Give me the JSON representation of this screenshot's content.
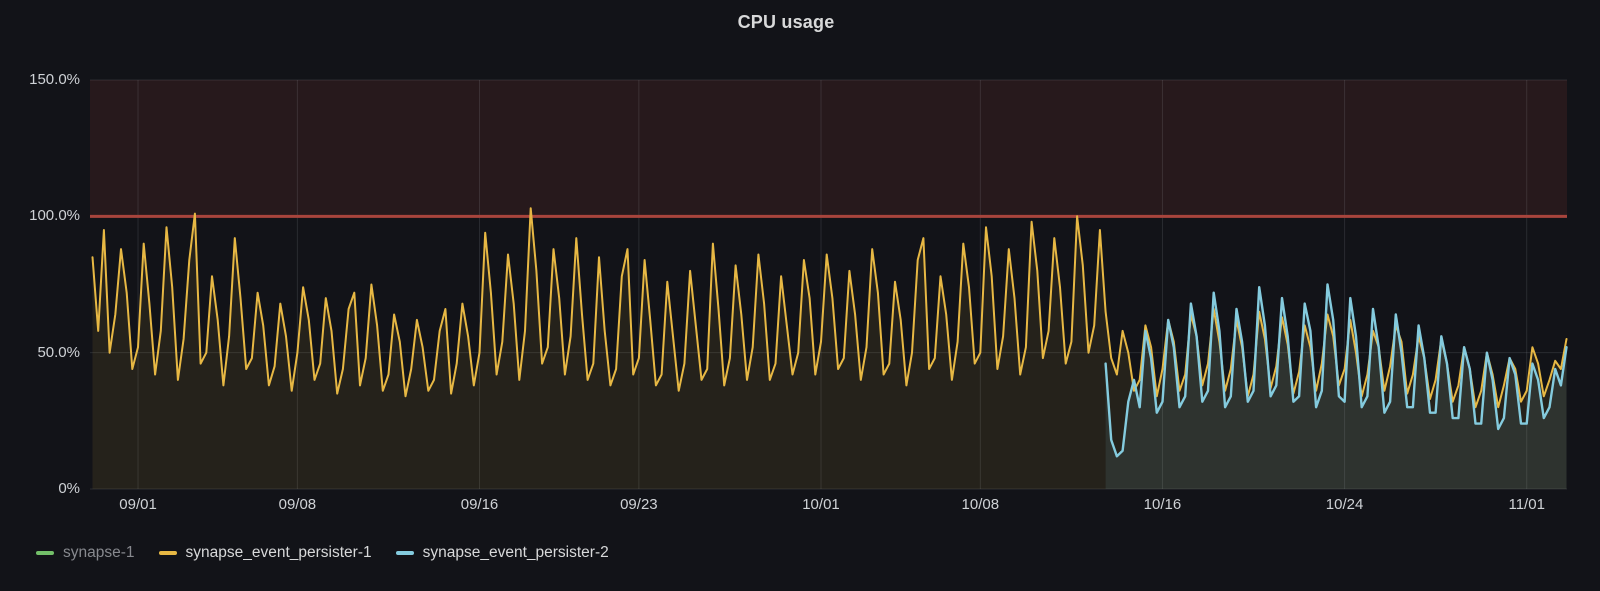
{
  "panel": {
    "title": "CPU usage"
  },
  "colors": {
    "background": "#121318",
    "text": "#CFD2D6",
    "text_dim": "#87898E",
    "grid": "rgba(204,210,220,0.13)",
    "threshold_line": "#A8443C",
    "threshold_region_fill": "rgba(222,80,70,0.10)"
  },
  "legend": {
    "items": [
      {
        "label": "synapse-1",
        "color": "#73BF69",
        "dimmed": true
      },
      {
        "label": "synapse_event_persister-1",
        "color": "#E7B844",
        "dimmed": false
      },
      {
        "label": "synapse_event_persister-2",
        "color": "#84CBDE",
        "dimmed": false
      }
    ]
  },
  "chart_data": {
    "type": "line",
    "title": "CPU usage",
    "xlabel": "",
    "ylabel": "",
    "y_unit": "percent",
    "ylim": [
      0,
      150
    ],
    "grid": true,
    "legend_position": "bottom-left",
    "y_ticks": [
      {
        "value": 0,
        "label": "0%"
      },
      {
        "value": 50,
        "label": "50.0%"
      },
      {
        "value": 100,
        "label": "100.0%"
      },
      {
        "value": 150,
        "label": "150.0%"
      }
    ],
    "x_domain_days_from_sep1": [
      -2.11,
      62.77
    ],
    "x_ticks": [
      {
        "day": 0,
        "label": "09/01"
      },
      {
        "day": 7,
        "label": "09/08"
      },
      {
        "day": 15,
        "label": "09/16"
      },
      {
        "day": 22,
        "label": "09/23"
      },
      {
        "day": 30,
        "label": "10/01"
      },
      {
        "day": 37,
        "label": "10/08"
      },
      {
        "day": 45,
        "label": "10/16"
      },
      {
        "day": 53,
        "label": "10/24"
      },
      {
        "day": 61,
        "label": "11/01"
      }
    ],
    "threshold": {
      "value": 100,
      "region_top": 150
    },
    "series": [
      {
        "name": "synapse-1",
        "color": "#73BF69",
        "hidden": true,
        "start_day": null,
        "step_days": null,
        "values": []
      },
      {
        "name": "synapse_event_persister-1",
        "color": "#E7B844",
        "hidden": false,
        "fill_opacity": 0.09,
        "line_width": 2,
        "start_day": -2.0,
        "step_days": 0.25,
        "values": [
          85,
          58,
          95,
          50,
          64,
          88,
          72,
          44,
          52,
          90,
          68,
          42,
          58,
          96,
          74,
          40,
          55,
          84,
          101,
          46,
          50,
          78,
          62,
          38,
          56,
          92,
          70,
          44,
          48,
          72,
          60,
          38,
          45,
          68,
          56,
          36,
          50,
          74,
          62,
          40,
          46,
          70,
          58,
          35,
          44,
          66,
          72,
          38,
          48,
          75,
          60,
          36,
          42,
          64,
          54,
          34,
          44,
          62,
          52,
          36,
          40,
          58,
          66,
          35,
          46,
          68,
          56,
          38,
          50,
          94,
          72,
          42,
          54,
          86,
          68,
          40,
          58,
          103,
          80,
          46,
          52,
          88,
          70,
          42,
          56,
          92,
          64,
          40,
          46,
          85,
          58,
          38,
          44,
          78,
          88,
          42,
          48,
          84,
          62,
          38,
          42,
          76,
          56,
          36,
          46,
          80,
          60,
          40,
          44,
          90,
          66,
          38,
          48,
          82,
          64,
          40,
          52,
          86,
          68,
          40,
          46,
          78,
          60,
          42,
          50,
          84,
          70,
          42,
          54,
          86,
          70,
          44,
          48,
          80,
          64,
          40,
          52,
          88,
          72,
          42,
          46,
          76,
          62,
          38,
          50,
          84,
          92,
          44,
          48,
          78,
          64,
          40,
          54,
          90,
          74,
          46,
          50,
          96,
          78,
          44,
          56,
          88,
          70,
          42,
          52,
          98,
          80,
          48,
          58,
          92,
          74,
          46,
          54,
          100,
          82,
          50,
          60,
          95,
          65,
          48,
          42,
          58,
          50,
          36,
          40,
          60,
          52,
          34,
          44,
          62,
          54,
          36,
          42,
          64,
          56,
          38,
          46,
          66,
          54,
          36,
          44,
          62,
          52,
          34,
          42,
          65,
          55,
          37,
          45,
          63,
          53,
          35,
          43,
          60,
          52,
          36,
          46,
          64,
          56,
          38,
          44,
          62,
          50,
          34,
          42,
          58,
          52,
          36,
          45,
          60,
          54,
          35,
          42,
          56,
          48,
          33,
          40,
          55,
          46,
          32,
          38,
          52,
          44,
          30,
          36,
          50,
          42,
          30,
          38,
          48,
          44,
          32,
          36,
          52,
          46,
          34,
          40,
          47,
          44,
          55
        ]
      },
      {
        "name": "synapse_event_persister-2",
        "color": "#84CBDE",
        "hidden": false,
        "fill_opacity": 0.1,
        "line_width": 2.4,
        "start_day": 42.5,
        "step_days": 0.25,
        "values": [
          46,
          18,
          12,
          14,
          32,
          40,
          30,
          58,
          48,
          28,
          32,
          62,
          52,
          30,
          34,
          68,
          56,
          32,
          36,
          72,
          58,
          30,
          34,
          66,
          54,
          32,
          36,
          74,
          60,
          34,
          38,
          70,
          56,
          32,
          34,
          68,
          58,
          30,
          36,
          75,
          62,
          34,
          32,
          70,
          56,
          30,
          34,
          66,
          52,
          28,
          32,
          64,
          50,
          30,
          30,
          60,
          48,
          28,
          28,
          56,
          46,
          26,
          26,
          52,
          44,
          24,
          24,
          50,
          40,
          22,
          26,
          48,
          42,
          24,
          24,
          46,
          40,
          26,
          30,
          44,
          38,
          52
        ]
      }
    ]
  }
}
